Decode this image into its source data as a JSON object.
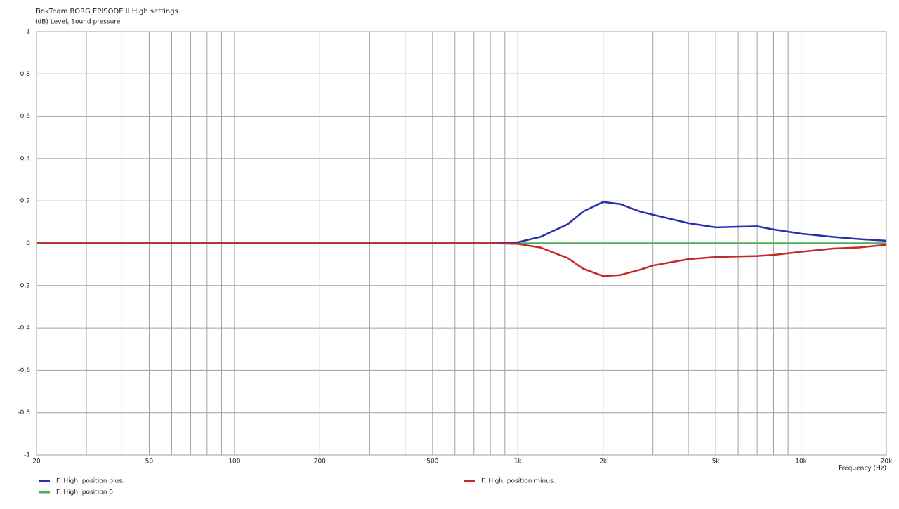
{
  "chart_data": {
    "type": "line",
    "title": "FinkTeam BORG EPISODE II High settings.",
    "y_label": "(dB)  Level, Sound pressure",
    "x_label": "Frequency  (Hz)",
    "x_scale": "log",
    "xlim": [
      20,
      20000
    ],
    "ylim": [
      -1,
      1
    ],
    "xticks": [
      20,
      50,
      100,
      200,
      500,
      {
        "value": 1000,
        "label": "1k"
      },
      {
        "value": 2000,
        "label": "2k"
      },
      {
        "value": 5000,
        "label": "5k"
      },
      {
        "value": 10000,
        "label": "10k"
      },
      {
        "value": 20000,
        "label": "20k"
      }
    ],
    "xminorticks": [
      30,
      40,
      60,
      70,
      80,
      90,
      300,
      400,
      600,
      700,
      800,
      900,
      3000,
      4000,
      6000,
      7000,
      8000,
      9000
    ],
    "yticks": [
      1,
      0.8,
      0.6,
      0.4,
      0.2,
      0,
      -0.2,
      -0.4,
      -0.6,
      -0.8,
      -1
    ],
    "grid": true,
    "x": [
      20,
      30,
      50,
      100,
      200,
      500,
      800,
      1000,
      1200,
      1500,
      1700,
      2000,
      2300,
      2700,
      3000,
      4000,
      5000,
      6000,
      7000,
      8000,
      10000,
      13000,
      16000,
      20000
    ],
    "series": [
      {
        "name": "F: High, position plus.",
        "color": "#2a2fb0",
        "values": [
          0,
          0,
          0,
          0,
          0,
          0,
          0,
          0.005,
          0.03,
          0.09,
          0.15,
          0.195,
          0.185,
          0.15,
          0.135,
          0.095,
          0.075,
          0.078,
          0.08,
          0.065,
          0.045,
          0.03,
          0.02,
          0.012
        ]
      },
      {
        "name": "F: High, position 0.",
        "color": "#4caf50",
        "values": [
          0,
          0,
          0,
          0,
          0,
          0,
          0,
          0,
          0,
          0,
          0,
          0,
          0,
          0,
          0,
          0,
          0,
          0,
          0,
          0,
          0,
          0,
          0,
          0
        ]
      },
      {
        "name": "F: High, position minus.",
        "color": "#c62828",
        "values": [
          0,
          0,
          0,
          0,
          0,
          0,
          0,
          -0.003,
          -0.02,
          -0.07,
          -0.12,
          -0.155,
          -0.15,
          -0.125,
          -0.105,
          -0.075,
          -0.065,
          -0.062,
          -0.06,
          -0.055,
          -0.04,
          -0.025,
          -0.02,
          -0.007
        ]
      }
    ]
  }
}
